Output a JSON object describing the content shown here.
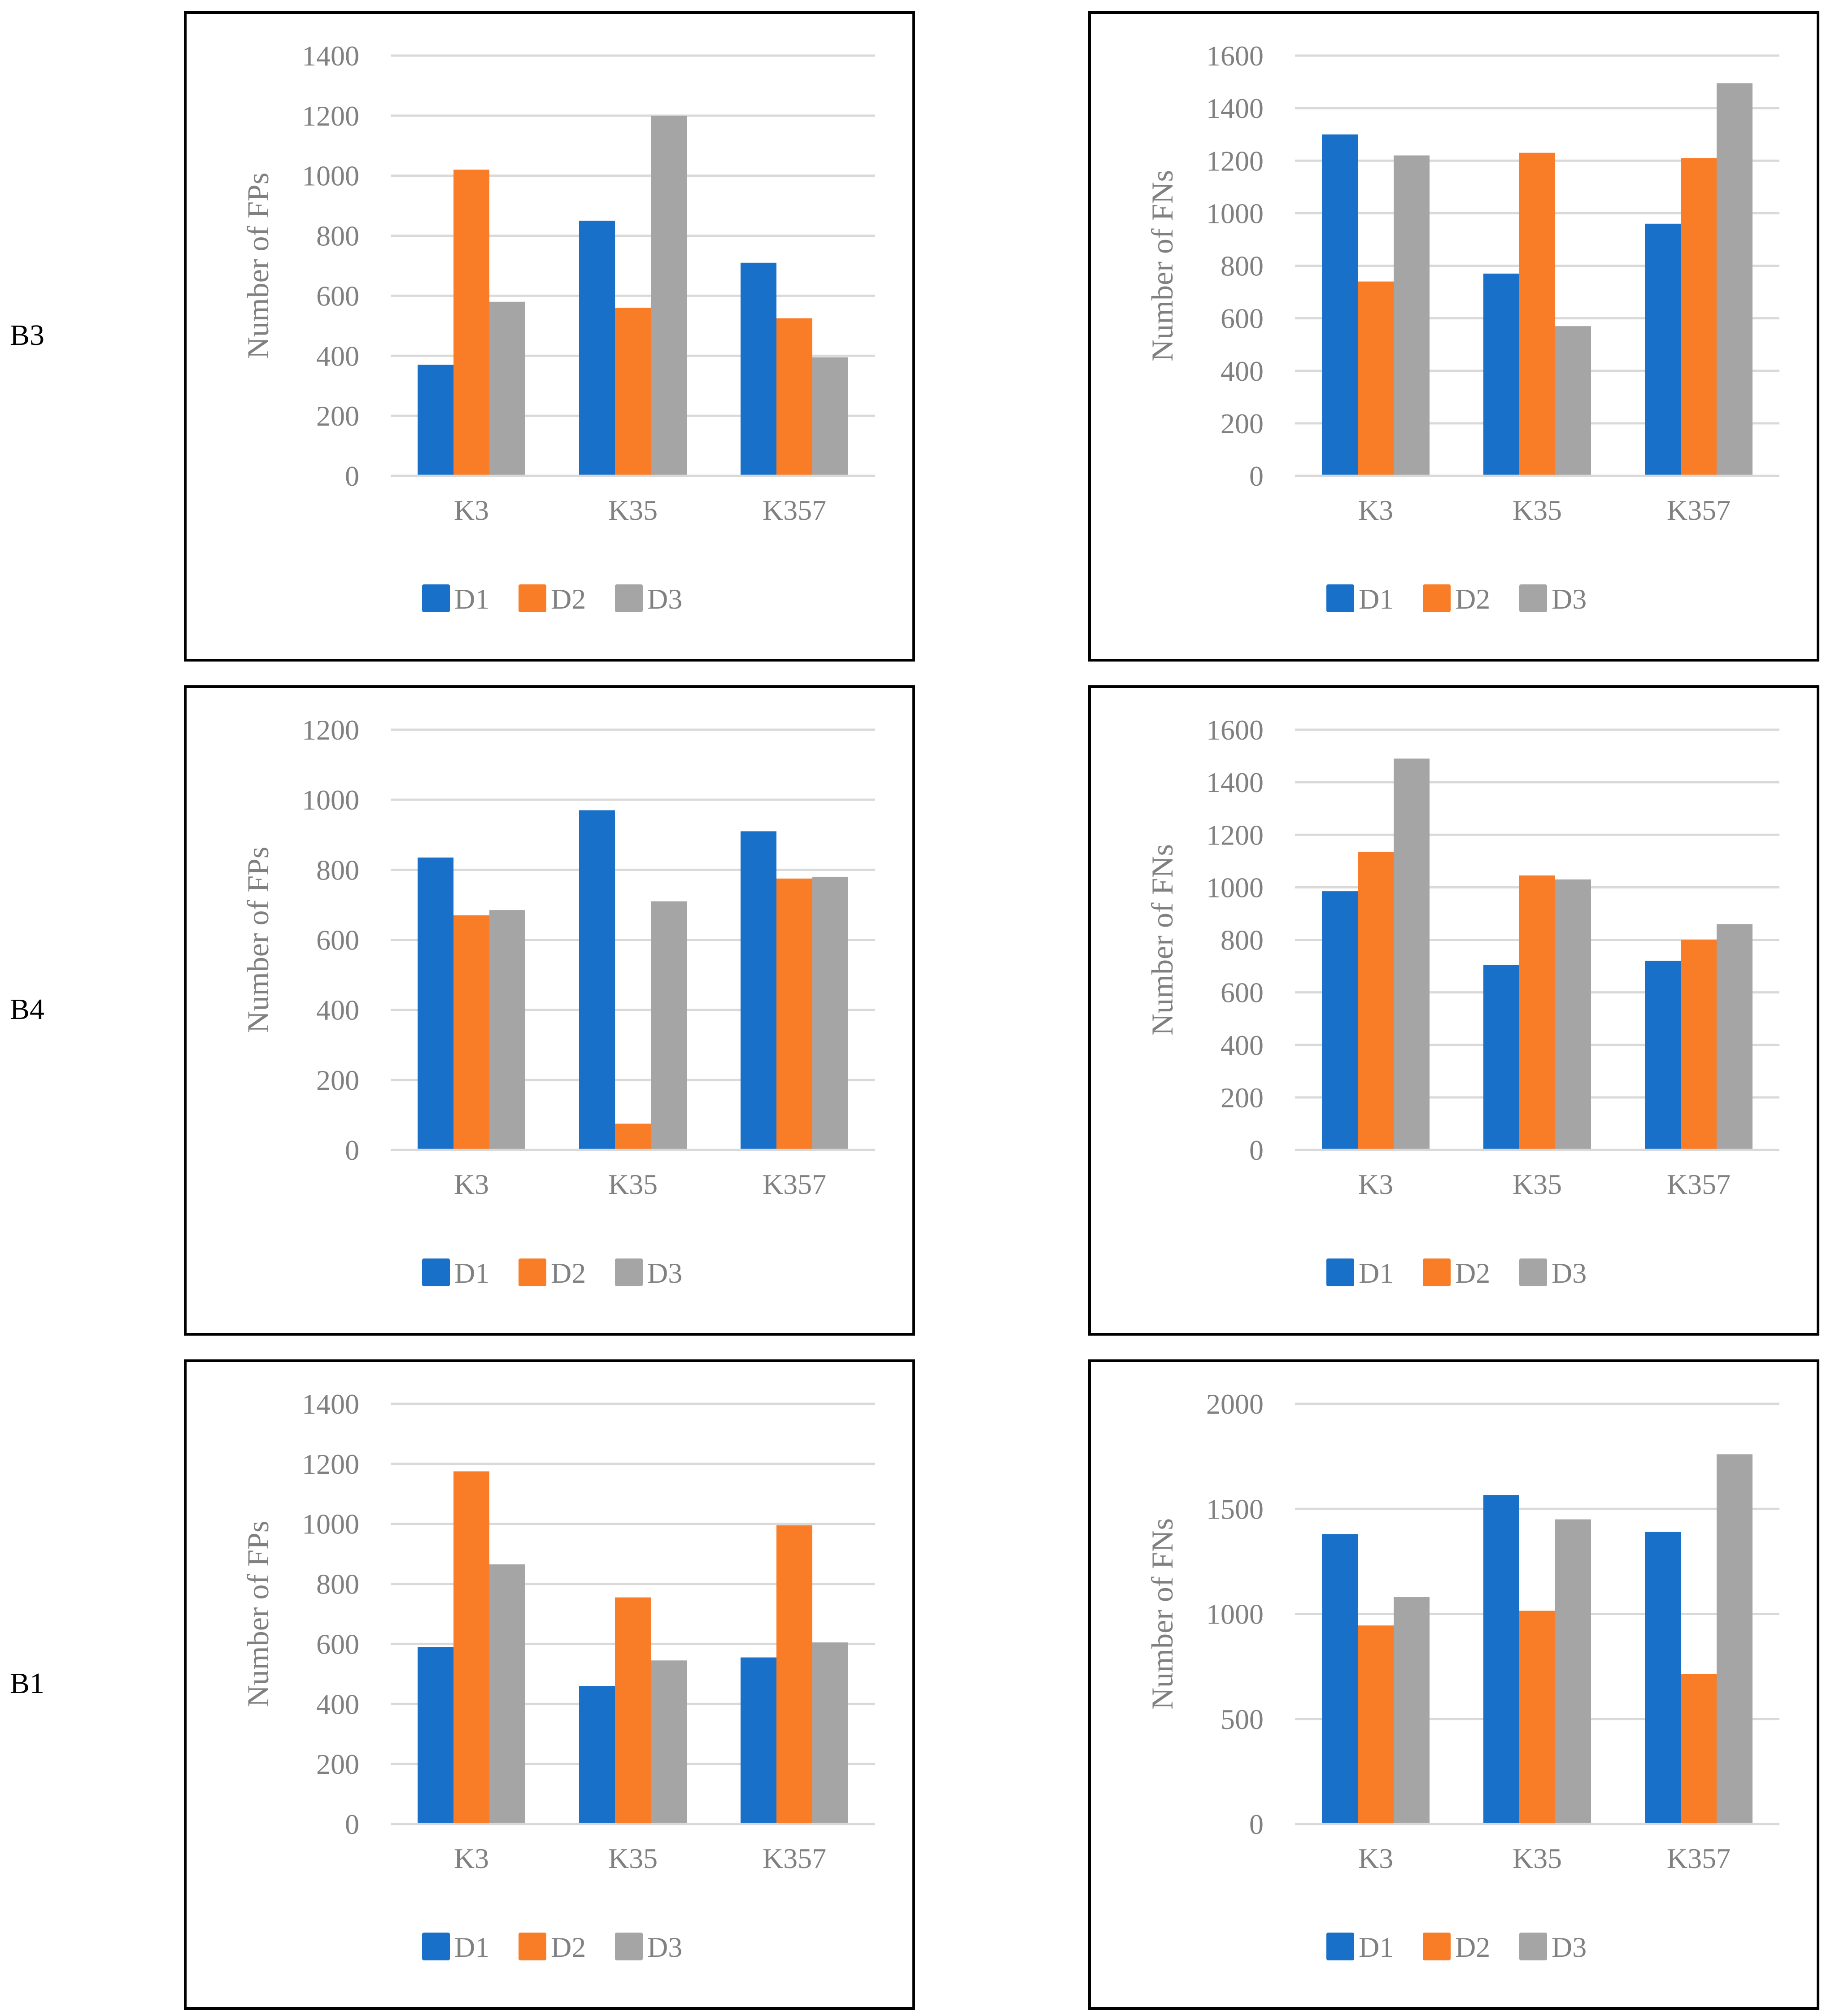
{
  "colors": {
    "D1": "#1870c8",
    "D2": "#f97c27",
    "D3": "#a5a5a5",
    "grid": "#d9d9d9",
    "text": "#808080"
  },
  "rows": [
    "B3",
    "B4",
    "B1"
  ],
  "chart_data": [
    {
      "id": "b3-fp",
      "type": "bar",
      "row": "B3",
      "ylabel": "Number of  FPs",
      "categories": [
        "K3",
        "K35",
        "K357"
      ],
      "ylim": [
        0,
        1400
      ],
      "yticks": [
        0,
        200,
        400,
        600,
        800,
        1000,
        1200,
        1400
      ],
      "series": [
        {
          "name": "D1",
          "values": [
            370,
            850,
            710
          ]
        },
        {
          "name": "D2",
          "values": [
            1020,
            560,
            525
          ]
        },
        {
          "name": "D3",
          "values": [
            580,
            1200,
            395
          ]
        }
      ]
    },
    {
      "id": "b3-fn",
      "type": "bar",
      "row": "B3",
      "ylabel": "Number of  FNs",
      "categories": [
        "K3",
        "K35",
        "K357"
      ],
      "ylim": [
        0,
        1600
      ],
      "yticks": [
        0,
        200,
        400,
        600,
        800,
        1000,
        1200,
        1400,
        1600
      ],
      "series": [
        {
          "name": "D1",
          "values": [
            1300,
            770,
            960
          ]
        },
        {
          "name": "D2",
          "values": [
            740,
            1230,
            1210
          ]
        },
        {
          "name": "D3",
          "values": [
            1220,
            570,
            1495
          ]
        }
      ]
    },
    {
      "id": "b4-fp",
      "type": "bar",
      "row": "B4",
      "ylabel": "Number of  FPs",
      "categories": [
        "K3",
        "K35",
        "K357"
      ],
      "ylim": [
        0,
        1200
      ],
      "yticks": [
        0,
        200,
        400,
        600,
        800,
        1000,
        1200
      ],
      "series": [
        {
          "name": "D1",
          "values": [
            835,
            970,
            910
          ]
        },
        {
          "name": "D2",
          "values": [
            670,
            75,
            775
          ]
        },
        {
          "name": "D3",
          "values": [
            685,
            710,
            780
          ]
        }
      ]
    },
    {
      "id": "b4-fn",
      "type": "bar",
      "row": "B4",
      "ylabel": "Number of  FNs",
      "categories": [
        "K3",
        "K35",
        "K357"
      ],
      "ylim": [
        0,
        1600
      ],
      "yticks": [
        0,
        200,
        400,
        600,
        800,
        1000,
        1200,
        1400,
        1600
      ],
      "series": [
        {
          "name": "D1",
          "values": [
            985,
            705,
            720
          ]
        },
        {
          "name": "D2",
          "values": [
            1135,
            1045,
            800
          ]
        },
        {
          "name": "D3",
          "values": [
            1490,
            1030,
            860
          ]
        }
      ]
    },
    {
      "id": "b1-fp",
      "type": "bar",
      "row": "B1",
      "ylabel": "Number of  FPs",
      "categories": [
        "K3",
        "K35",
        "K357"
      ],
      "ylim": [
        0,
        1400
      ],
      "yticks": [
        0,
        200,
        400,
        600,
        800,
        1000,
        1200,
        1400
      ],
      "series": [
        {
          "name": "D1",
          "values": [
            590,
            460,
            555
          ]
        },
        {
          "name": "D2",
          "values": [
            1175,
            755,
            995
          ]
        },
        {
          "name": "D3",
          "values": [
            865,
            545,
            605
          ]
        }
      ]
    },
    {
      "id": "b1-fn",
      "type": "bar",
      "row": "B1",
      "ylabel": "Number of FNs",
      "categories": [
        "K3",
        "K35",
        "K357"
      ],
      "ylim": [
        0,
        2000
      ],
      "yticks": [
        0,
        500,
        1000,
        1500,
        2000
      ],
      "series": [
        {
          "name": "D1",
          "values": [
            1380,
            1565,
            1390
          ]
        },
        {
          "name": "D2",
          "values": [
            945,
            1015,
            715
          ]
        },
        {
          "name": "D3",
          "values": [
            1080,
            1450,
            1760
          ]
        }
      ]
    }
  ]
}
